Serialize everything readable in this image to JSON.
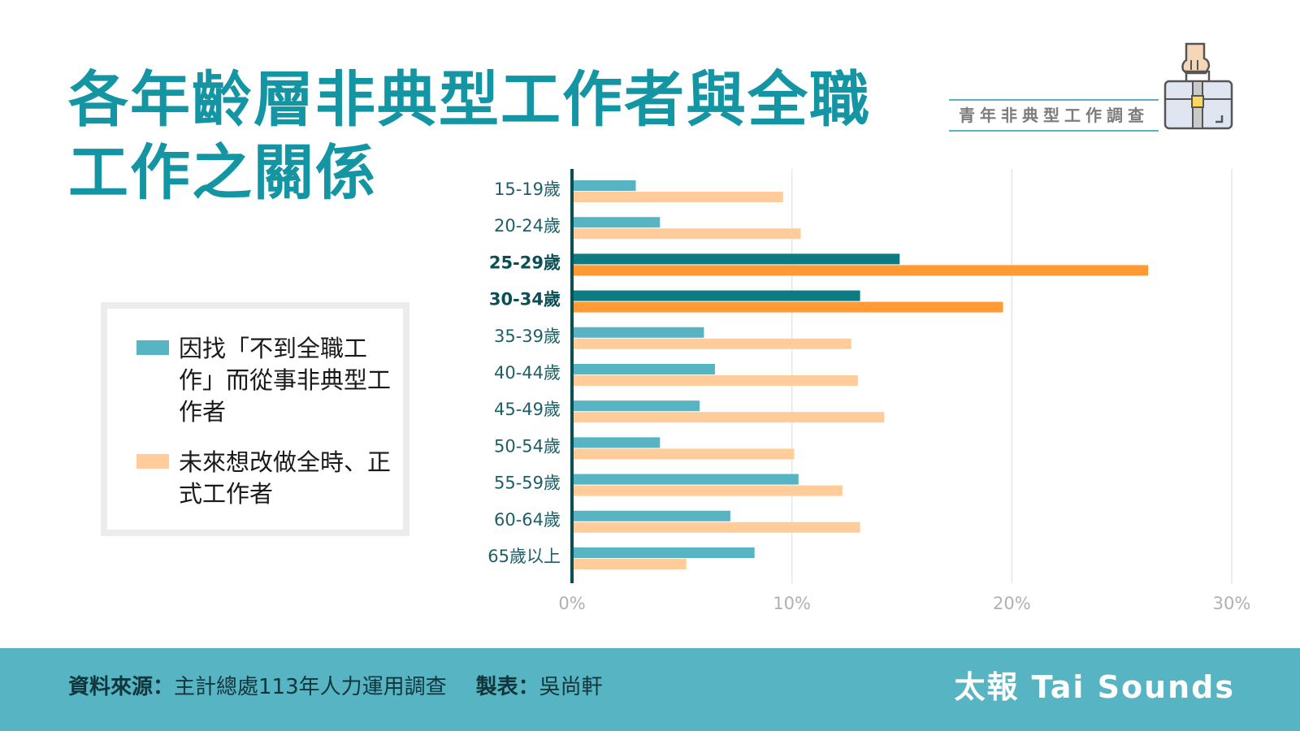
{
  "title": {
    "line1": "各年齡層非典型工作者與全職",
    "line2": "工作之關係"
  },
  "badge": {
    "label": "青年非典型工作調查"
  },
  "legend": {
    "items": [
      {
        "label": "因找「不到全職工作」而從事非典型工作者",
        "color": "#56b4c3"
      },
      {
        "label": "未來想改做全時、正式工作者",
        "color": "#ffcc9a"
      }
    ]
  },
  "colors": {
    "teal_light": "#56b4c3",
    "teal_dark": "#0e7a82",
    "orange_light": "#ffcc9a",
    "orange_dark": "#ff9a35",
    "title": "#1395a3"
  },
  "chart_data": {
    "type": "bar",
    "orientation": "horizontal",
    "categories": [
      "15-19歲",
      "20-24歲",
      "25-29歲",
      "30-34歲",
      "35-39歲",
      "40-44歲",
      "45-49歲",
      "50-54歲",
      "55-59歲",
      "60-64歲",
      "65歲以上"
    ],
    "highlighted": [
      "25-29歲",
      "30-34歲"
    ],
    "series": [
      {
        "name": "因找「不到全職工作」而從事非典型工作者",
        "values": [
          2.9,
          4.0,
          14.9,
          13.1,
          6.0,
          6.5,
          5.8,
          4.0,
          10.3,
          7.2,
          8.3
        ]
      },
      {
        "name": "未來想改做全時、正式工作者",
        "values": [
          9.6,
          10.4,
          26.2,
          19.6,
          12.7,
          13.0,
          14.2,
          10.1,
          12.3,
          13.1,
          5.2
        ]
      }
    ],
    "xlim": [
      0,
      30
    ],
    "xticks": [
      0,
      10,
      20,
      30
    ],
    "tick_labels": [
      "0%",
      "10%",
      "20%",
      "30%"
    ],
    "grid": true,
    "xlabel": "",
    "ylabel": ""
  },
  "footer": {
    "source_label": "資料來源：",
    "source_text": "主計總處113年人力運用調查",
    "maker_label": "製表：",
    "maker_text": "吳尚軒",
    "brand": "太報 Tai Sounds"
  }
}
